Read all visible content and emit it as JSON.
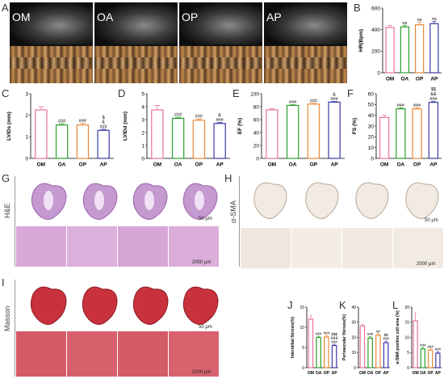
{
  "panel_letters": {
    "A": "A",
    "B": "B",
    "C": "C",
    "D": "D",
    "E": "E",
    "F": "F",
    "G": "G",
    "H": "H",
    "I": "I",
    "J": "J",
    "K": "K",
    "L": "L"
  },
  "echo_groups": [
    "OM",
    "OA",
    "OP",
    "AP"
  ],
  "histology": {
    "he_label": "H&E",
    "sma_label": "α-SMA",
    "masson_label": "Masson",
    "scale_small": "50 μm",
    "scale_large": "2000 μm"
  },
  "colors": {
    "OM": "#e8739a",
    "OA": "#2ca02c",
    "OP": "#e8893a",
    "AP": "#3a3aa8",
    "bar_fill": "#ffffff"
  },
  "chart_data": [
    {
      "id": "B",
      "type": "bar",
      "ylabel": "HR(Bpm)",
      "ylim": [
        0,
        600
      ],
      "yticks": [
        0,
        200,
        400,
        600
      ],
      "categories": [
        "OM",
        "OA",
        "OP",
        "AP"
      ],
      "values": [
        420,
        425,
        445,
        455
      ],
      "errors": [
        20,
        15,
        25,
        20
      ],
      "annotations": [
        [],
        [
          "ns"
        ],
        [
          "ns"
        ],
        [
          "ns"
        ]
      ]
    },
    {
      "id": "C",
      "type": "bar",
      "ylabel": "LVIDs (mm)",
      "ylim": [
        0,
        3
      ],
      "yticks": [
        0,
        1,
        2,
        3
      ],
      "categories": [
        "OM",
        "OA",
        "OP",
        "AP"
      ],
      "values": [
        2.25,
        1.55,
        1.55,
        1.3
      ],
      "errors": [
        0.15,
        0.06,
        0.08,
        0.05
      ],
      "annotations": [
        [],
        [
          "###"
        ],
        [
          "###"
        ],
        [
          "$",
          "&",
          "###"
        ]
      ]
    },
    {
      "id": "D",
      "type": "bar",
      "ylabel": "LVIDd (mm)",
      "ylim": [
        0,
        5
      ],
      "yticks": [
        0,
        1,
        2,
        3,
        4,
        5
      ],
      "categories": [
        "OM",
        "OA",
        "OP",
        "AP"
      ],
      "values": [
        3.75,
        3.1,
        2.95,
        2.7
      ],
      "errors": [
        0.35,
        0.08,
        0.1,
        0.08
      ],
      "annotations": [
        [],
        [
          "###"
        ],
        [
          "###"
        ],
        [
          "&",
          "###"
        ]
      ]
    },
    {
      "id": "E",
      "type": "bar",
      "ylabel": "EF (%)",
      "ylim": [
        0,
        100
      ],
      "yticks": [
        0,
        20,
        40,
        60,
        80,
        100
      ],
      "categories": [
        "OM",
        "OA",
        "OP",
        "AP"
      ],
      "values": [
        75,
        82,
        84,
        87
      ],
      "errors": [
        2,
        1,
        1,
        1
      ],
      "annotations": [
        [],
        [
          "###"
        ],
        [
          "###"
        ],
        [
          "&",
          "###"
        ]
      ]
    },
    {
      "id": "F",
      "type": "bar",
      "ylabel": "FS (%)",
      "ylim": [
        0,
        60
      ],
      "yticks": [
        0,
        10,
        20,
        30,
        40,
        50,
        60
      ],
      "categories": [
        "OM",
        "OA",
        "OP",
        "AP"
      ],
      "values": [
        38,
        46,
        46,
        52
      ],
      "errors": [
        2,
        1,
        1,
        1
      ],
      "annotations": [
        [],
        [
          "###"
        ],
        [
          "###"
        ],
        [
          "$$",
          "&&",
          "###"
        ]
      ]
    },
    {
      "id": "J",
      "type": "bar",
      "ylabel": "Interstitial fibrosis(%)",
      "ylim": [
        0,
        15
      ],
      "yticks": [
        0,
        5,
        10,
        15
      ],
      "categories": [
        "OM",
        "OA",
        "OP",
        "AP"
      ],
      "values": [
        12,
        7.5,
        7.6,
        5.5
      ],
      "errors": [
        0.9,
        0.3,
        0.4,
        0.3
      ],
      "annotations": [
        [],
        [
          "###"
        ],
        [
          "###"
        ],
        [
          "$$$",
          "&&&",
          "###"
        ]
      ]
    },
    {
      "id": "K",
      "type": "bar",
      "ylabel": "Perivascular fibrosis(%)",
      "ylim": [
        0,
        40
      ],
      "yticks": [
        0,
        10,
        20,
        30,
        40
      ],
      "categories": [
        "OM",
        "OA",
        "OP",
        "AP"
      ],
      "values": [
        27.5,
        19.5,
        21.5,
        16.5
      ],
      "errors": [
        1,
        1,
        1,
        1
      ],
      "annotations": [
        [],
        [
          "###"
        ],
        [
          "##"
        ],
        [
          "$$",
          "###"
        ]
      ]
    },
    {
      "id": "L",
      "type": "bar",
      "ylabel": "α-SMA positive cell area (%)",
      "ylim": [
        0,
        20
      ],
      "yticks": [
        0,
        5,
        10,
        15,
        20
      ],
      "categories": [
        "OM",
        "OA",
        "OP",
        "AP"
      ],
      "values": [
        15.5,
        6.2,
        5.8,
        4.8
      ],
      "errors": [
        2.5,
        0.5,
        0.4,
        0.5
      ],
      "annotations": [
        [],
        [
          "###"
        ],
        [
          "###"
        ],
        [
          "###"
        ]
      ]
    }
  ]
}
